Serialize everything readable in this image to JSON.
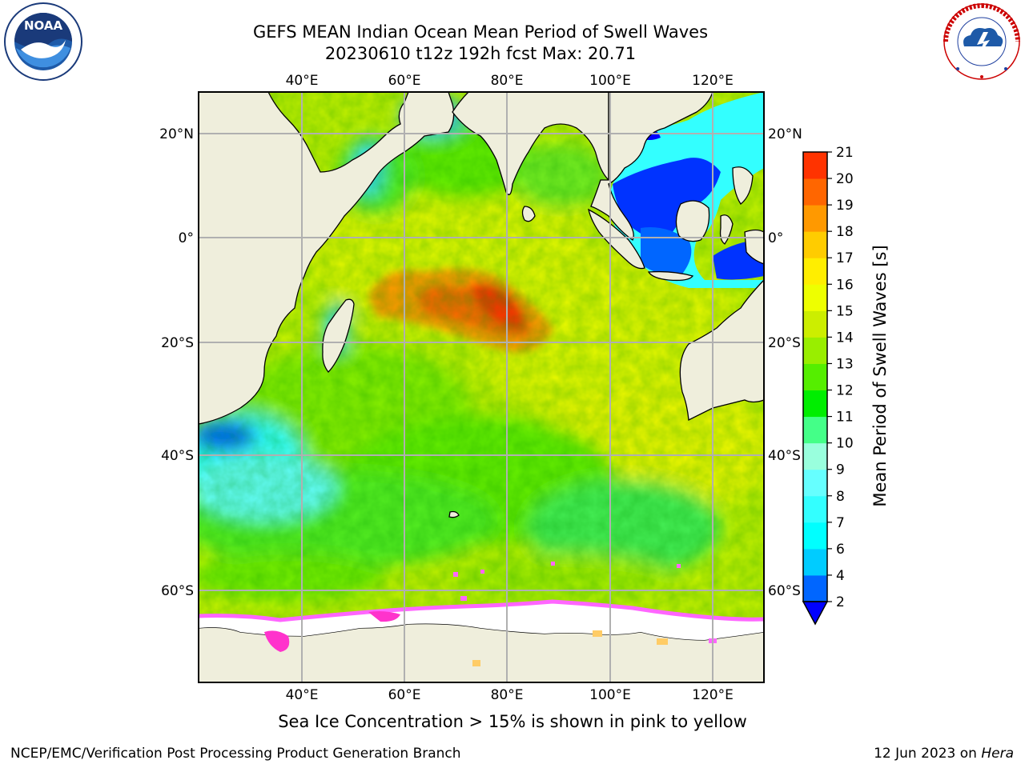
{
  "header": {
    "title_line1": "GEFS MEAN Indian Ocean Mean Period of Swell Waves",
    "title_line2": "20230610 t12z 192h fcst   Max: 20.71"
  },
  "logos": {
    "left": {
      "icon": "noaa-logo-icon",
      "text": "NOAA"
    },
    "right": {
      "icon": "nws-logo-icon",
      "text": "NATIONAL WEATHER SERVICE"
    }
  },
  "map": {
    "region": "Indian Ocean",
    "lon_ticks": [
      "40°E",
      "60°E",
      "80°E",
      "100°E",
      "120°E"
    ],
    "lat_ticks": [
      "20°N",
      "0°",
      "20°S",
      "40°S",
      "60°S"
    ],
    "max_value": 20.71,
    "land_color": "#efeedc",
    "grid_color": "#b0b0b0",
    "sea_ice_colors": [
      "#ff66ff",
      "#ff33cc",
      "#ffcc66"
    ]
  },
  "colorbar": {
    "title": "Mean Period of Swell Waves [s]",
    "labels": [
      "2",
      "4",
      "6",
      "7",
      "8",
      "9",
      "10",
      "11",
      "12",
      "13",
      "14",
      "15",
      "16",
      "17",
      "18",
      "19",
      "20",
      "21"
    ],
    "colors": [
      "#0066ff",
      "#00ccff",
      "#00ffff",
      "#33ffff",
      "#66ffff",
      "#99ffdd",
      "#44ff88",
      "#00ee00",
      "#55ee00",
      "#99ee00",
      "#ccee00",
      "#eeff00",
      "#ffee00",
      "#ffcc00",
      "#ff9900",
      "#ff6600",
      "#ff3300",
      "#ff0000"
    ],
    "under_color": "#0000ff"
  },
  "footnote": "Sea Ice Concentration > 15% is shown in pink to yellow",
  "footer": {
    "left": "NCEP/EMC/Verification Post Processing Product Generation Branch",
    "right_prefix": "12 Jun 2023 on ",
    "right_host": "Hera"
  }
}
